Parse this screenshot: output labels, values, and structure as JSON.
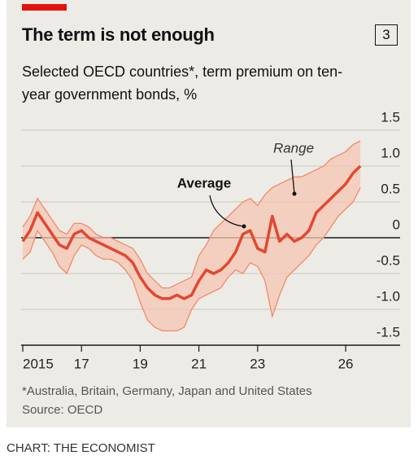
{
  "chart_data": {
    "type": "line",
    "title": "The term is not enough",
    "chart_number": "3",
    "subtitle": "Selected OECD countries*, term premium on ten-year government bonds, %",
    "footnote": "*Australia, Britain, Germany, Japan and United States",
    "source": "Source: OECD",
    "credit": "CHART: THE ECONOMIST",
    "x": [
      2015,
      2015.25,
      2015.5,
      2015.75,
      2016,
      2016.25,
      2016.5,
      2016.75,
      2017,
      2017.25,
      2017.5,
      2017.75,
      2018,
      2018.25,
      2018.5,
      2018.75,
      2019,
      2019.25,
      2019.5,
      2019.75,
      2020,
      2020.25,
      2020.5,
      2020.75,
      2021,
      2021.25,
      2021.5,
      2021.75,
      2022,
      2022.25,
      2022.5,
      2022.75,
      2023,
      2023.25,
      2023.5,
      2023.75,
      2024,
      2024.25,
      2024.5,
      2024.75,
      2025,
      2025.25,
      2025.5,
      2025.75,
      2026,
      2026.25,
      2026.5
    ],
    "series": [
      {
        "name": "Average",
        "color": "#e3472f",
        "values": [
          -0.05,
          0.1,
          0.35,
          0.2,
          0.05,
          -0.1,
          -0.15,
          0.05,
          0.1,
          0.0,
          -0.05,
          -0.1,
          -0.15,
          -0.2,
          -0.25,
          -0.35,
          -0.55,
          -0.7,
          -0.8,
          -0.85,
          -0.85,
          -0.8,
          -0.85,
          -0.8,
          -0.6,
          -0.45,
          -0.5,
          -0.45,
          -0.35,
          -0.2,
          0.05,
          0.1,
          -0.15,
          -0.2,
          0.3,
          -0.05,
          0.05,
          -0.05,
          0.0,
          0.1,
          0.35,
          0.45,
          0.55,
          0.65,
          0.75,
          0.9,
          1.0
        ]
      }
    ],
    "range": {
      "name": "Range",
      "color": "#f5c6b3",
      "edge_color": "#f08a6a",
      "high": [
        0.15,
        0.3,
        0.55,
        0.4,
        0.25,
        0.1,
        0.05,
        0.2,
        0.2,
        0.15,
        0.05,
        0.0,
        0.0,
        -0.05,
        -0.1,
        -0.15,
        -0.3,
        -0.5,
        -0.6,
        -0.7,
        -0.7,
        -0.65,
        -0.6,
        -0.55,
        -0.25,
        -0.1,
        0.1,
        0.2,
        0.3,
        0.4,
        0.5,
        0.55,
        0.45,
        0.6,
        0.7,
        0.75,
        0.8,
        0.85,
        0.85,
        0.9,
        0.95,
        1.0,
        1.1,
        1.15,
        1.2,
        1.3,
        1.35
      ],
      "low": [
        -0.3,
        -0.2,
        0.1,
        -0.05,
        -0.2,
        -0.4,
        -0.5,
        -0.25,
        -0.1,
        -0.15,
        -0.25,
        -0.3,
        -0.3,
        -0.35,
        -0.45,
        -0.6,
        -0.9,
        -1.15,
        -1.25,
        -1.3,
        -1.3,
        -1.3,
        -1.25,
        -1.0,
        -0.85,
        -0.8,
        -0.75,
        -0.7,
        -0.55,
        -0.45,
        -0.5,
        -0.35,
        -0.4,
        -0.6,
        -1.1,
        -0.8,
        -0.55,
        -0.45,
        -0.35,
        -0.25,
        -0.1,
        0.0,
        0.15,
        0.3,
        0.4,
        0.5,
        0.7
      ]
    },
    "xlim": [
      2014.9,
      2026.6
    ],
    "xticks": [
      {
        "value": 2015,
        "label": "2015"
      },
      {
        "value": 2017,
        "label": "17"
      },
      {
        "value": 2019,
        "label": "19"
      },
      {
        "value": 2021,
        "label": "21"
      },
      {
        "value": 2023,
        "label": "23"
      },
      {
        "value": 2026,
        "label": "26"
      }
    ],
    "ylim": [
      -1.5,
      1.5
    ],
    "yticks": [
      1.5,
      {
        "value": 1,
        "label": "1.0"
      },
      0.5,
      0,
      -0.5,
      {
        "value": -1,
        "label": "-1.0"
      },
      -1.5
    ],
    "grid": true
  }
}
